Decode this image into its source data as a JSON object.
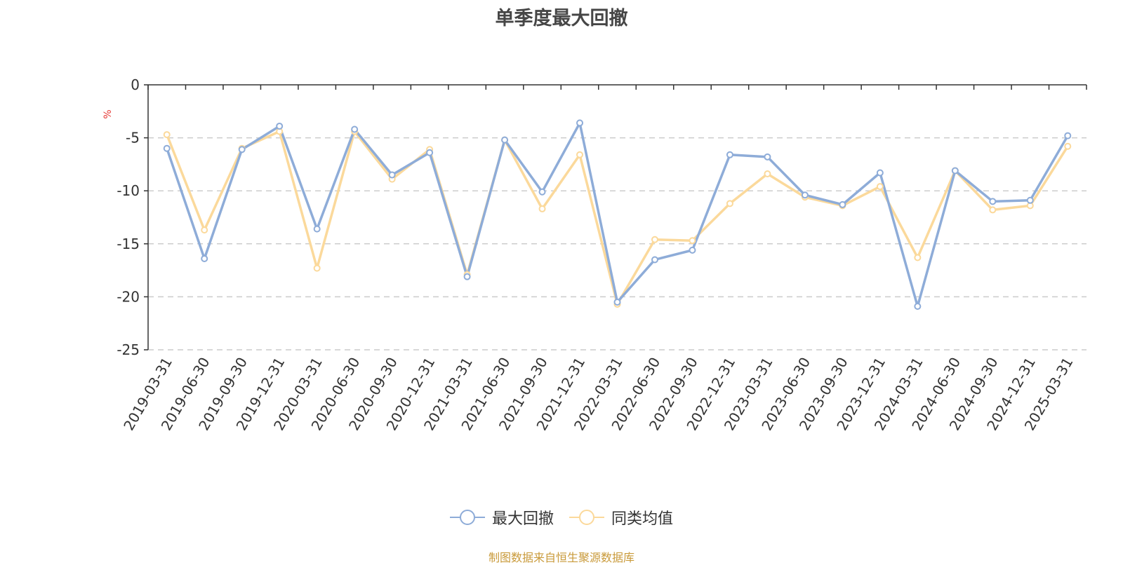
{
  "chart_data": {
    "type": "line",
    "title": "单季度最大回撤",
    "ylabel": "%",
    "ylim": [
      -25,
      0
    ],
    "yticks": [
      0,
      -5,
      -10,
      -15,
      -20,
      -25
    ],
    "grid": true,
    "legend_position": "bottom",
    "categories": [
      "2019-03-31",
      "2019-06-30",
      "2019-09-30",
      "2019-12-31",
      "2020-03-31",
      "2020-06-30",
      "2020-09-30",
      "2020-12-31",
      "2021-03-31",
      "2021-06-30",
      "2021-09-30",
      "2021-12-31",
      "2022-03-31",
      "2022-06-30",
      "2022-09-30",
      "2022-12-31",
      "2023-03-31",
      "2023-06-30",
      "2023-09-30",
      "2023-12-31",
      "2024-03-31",
      "2024-06-30",
      "2024-09-30",
      "2024-12-31",
      "2025-03-31"
    ],
    "series": [
      {
        "name": "最大回撤",
        "color": "#8eacd8",
        "values": [
          -6.0,
          -16.4,
          -6.1,
          -3.9,
          -13.6,
          -4.2,
          -8.5,
          -6.4,
          -18.1,
          -5.2,
          -10.1,
          -3.6,
          -20.5,
          -16.5,
          -15.6,
          -6.6,
          -6.8,
          -10.4,
          -11.3,
          -8.3,
          -20.9,
          -8.1,
          -11.0,
          -10.9,
          -4.8
        ]
      },
      {
        "name": "同类均值",
        "color": "#fbd99b",
        "values": [
          -4.7,
          -13.7,
          -6.0,
          -4.4,
          -17.3,
          -4.4,
          -8.9,
          -6.1,
          -17.9,
          -5.2,
          -11.7,
          -6.6,
          -20.7,
          -14.6,
          -14.7,
          -11.2,
          -8.4,
          -10.6,
          -11.4,
          -9.6,
          -16.3,
          -8.1,
          -11.8,
          -11.4,
          -5.8
        ]
      }
    ]
  },
  "footer": {
    "source": "制图数据来自恒生聚源数据库"
  }
}
